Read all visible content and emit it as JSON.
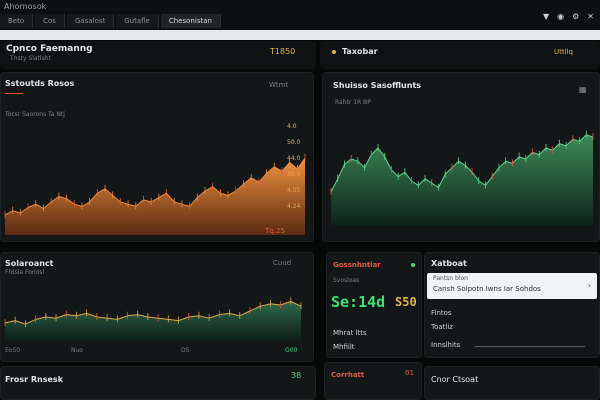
{
  "browser": {
    "title": "Ahornosok",
    "tabs": [
      "Beto",
      "Cos",
      "Gasalost",
      "Gutafle",
      "Chesonistan"
    ],
    "icons": [
      "wifi-icon",
      "bell-icon",
      "gear-icon",
      "close-icon"
    ]
  },
  "header": {
    "title": "Cpnco Faemanng",
    "subtitle": "Tnsty Slatlsht",
    "value": "T1850",
    "right_label": "Taxobar",
    "right_value": "Uttllq"
  },
  "panel1": {
    "title": "Sstoutds Rosos",
    "tag": "Wtmt",
    "sub": "Tocsr Saorons Ta Ntj",
    "axis_right": [
      "4.0",
      "50.0",
      "44.0",
      "30.0",
      "4.55",
      "4.24"
    ],
    "foot_value": "Tq.25",
    "chart_data": {
      "type": "area",
      "x": [
        0,
        1,
        2,
        3,
        4,
        5,
        6,
        7,
        8,
        9,
        10,
        11,
        12,
        13,
        14,
        15,
        16,
        17,
        18,
        19,
        20,
        21,
        22,
        23,
        24,
        25,
        26,
        27,
        28,
        29,
        30,
        31,
        32,
        33,
        34,
        35,
        36,
        37,
        38,
        39
      ],
      "series": [
        {
          "values": [
            18,
            22,
            20,
            25,
            28,
            24,
            30,
            35,
            33,
            28,
            26,
            30,
            38,
            42,
            36,
            30,
            28,
            26,
            32,
            30,
            34,
            38,
            30,
            28,
            26,
            34,
            40,
            44,
            38,
            36,
            40,
            46,
            52,
            48,
            56,
            62,
            58,
            66,
            60,
            70
          ]
        }
      ],
      "ylim": [
        0,
        100
      ]
    }
  },
  "panel2": {
    "title": "Shuisso Sasofflunts",
    "sub": "Rahtr 1R BP",
    "icon": "grid-icon",
    "chart_data": {
      "type": "area",
      "x": [
        0,
        1,
        2,
        3,
        4,
        5,
        6,
        7,
        8,
        9,
        10,
        11,
        12,
        13,
        14,
        15,
        16,
        17,
        18,
        19,
        20,
        21,
        22,
        23,
        24,
        25,
        26,
        27,
        28,
        29,
        30,
        31,
        32,
        33,
        34,
        35,
        36,
        37,
        38,
        39
      ],
      "series": [
        {
          "values": [
            30,
            42,
            55,
            60,
            58,
            52,
            64,
            70,
            62,
            50,
            44,
            48,
            40,
            36,
            42,
            38,
            34,
            46,
            52,
            58,
            54,
            48,
            40,
            36,
            44,
            52,
            58,
            56,
            62,
            60,
            66,
            64,
            70,
            68,
            74,
            72,
            78,
            76,
            82,
            80
          ]
        }
      ],
      "ylim": [
        0,
        100
      ]
    }
  },
  "panel3": {
    "title": "Solaroanct",
    "sub": "Fhtsla Fonosl",
    "tag": "Cuud",
    "foot": [
      "Eo50",
      "Nuo",
      "D5",
      "G00"
    ],
    "chart_data": {
      "type": "area",
      "x": [
        0,
        1,
        2,
        3,
        4,
        5,
        6,
        7,
        8,
        9,
        10,
        11,
        12,
        13,
        14,
        15,
        16,
        17,
        18,
        19,
        20,
        21,
        22,
        23,
        24,
        25,
        26,
        27,
        28,
        29
      ],
      "series": [
        {
          "values": [
            30,
            34,
            28,
            36,
            40,
            38,
            44,
            42,
            46,
            40,
            38,
            36,
            42,
            44,
            40,
            38,
            36,
            34,
            40,
            42,
            38,
            44,
            46,
            42,
            50,
            58,
            62,
            60,
            66,
            58
          ]
        }
      ],
      "ylim": [
        0,
        100
      ]
    }
  },
  "panel4": {
    "title": "Gossnhntiar",
    "sub": "Svosloas",
    "big_value": "Se:14d",
    "big_value2": "S50",
    "label1": "Mhrat ltts",
    "label2": "Mhfiilt"
  },
  "panel5": {
    "title": "Xatboat",
    "card_title": "Pantsn blon",
    "card_text": "Cansh Solpotn Iwns Iar Sohdos",
    "row1": "Fintos",
    "row2": "Toatliz",
    "row3": "Innslhits"
  },
  "panel6": {
    "title": "Frosr Rnsesk",
    "value": "38"
  },
  "panel7": {
    "title": "Corrhatt",
    "value": "01"
  },
  "panel8": {
    "title": "Cnor Ctsoat"
  }
}
